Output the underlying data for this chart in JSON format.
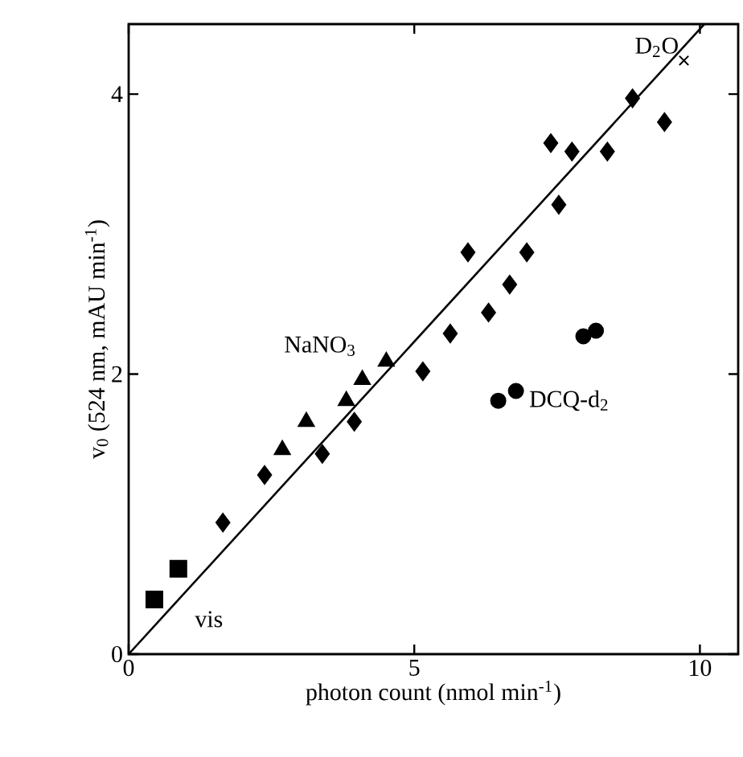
{
  "chart_data": {
    "type": "scatter",
    "xlabel": "photon count (nmol min$^{-1}$)",
    "ylabel": "v$_{0}$ (524 nm, mAU min$^{-1}$)",
    "xlim": [
      0,
      10.67
    ],
    "ylim": [
      0,
      4.5
    ],
    "xticks": [
      0,
      5,
      10
    ],
    "yticks": [
      0,
      2,
      4
    ],
    "series": [
      {
        "marker": "square",
        "color": "#000000",
        "x": [
          0.45,
          0.87
        ],
        "values": [
          0.39,
          0.61
        ]
      },
      {
        "marker": "diamond",
        "color": "#000000",
        "x": [
          1.65,
          2.38,
          3.39,
          3.95,
          5.15,
          5.63,
          5.94,
          6.3,
          6.67,
          6.97,
          7.53,
          7.39,
          7.76,
          8.38,
          8.82,
          9.38
        ],
        "values": [
          0.94,
          1.28,
          1.43,
          1.66,
          2.02,
          2.29,
          2.87,
          2.44,
          2.64,
          2.87,
          3.21,
          3.65,
          3.59,
          3.59,
          3.97,
          3.8
        ]
      },
      {
        "marker": "triangle",
        "color": "#000000",
        "x": [
          2.69,
          3.11,
          3.81,
          4.09,
          4.51
        ],
        "values": [
          1.46,
          1.66,
          1.81,
          1.96,
          2.09
        ]
      },
      {
        "marker": "circle",
        "color": "#000000",
        "x": [
          6.47,
          6.78,
          7.96,
          8.18
        ],
        "values": [
          1.81,
          1.88,
          2.27,
          2.31
        ]
      },
      {
        "marker": "cross",
        "color": "#000000",
        "x": [
          9.72
        ],
        "values": [
          4.24
        ]
      },
      {
        "type": "line",
        "marker": "none",
        "color": "#000000",
        "x": [
          0,
          10.08
        ],
        "values": [
          0,
          4.5
        ]
      }
    ],
    "annotations": [
      {
        "text": "vis",
        "x": 0.45,
        "y": 0.39
      },
      {
        "text": "NaNO$_{3}$",
        "x": 3.11,
        "y": 1.66
      },
      {
        "text": "DCQ-d$_{2}$",
        "x": 6.78,
        "y": 1.88
      },
      {
        "text": "D$_{2}$O",
        "x": 9.72,
        "y": 4.24
      }
    ]
  }
}
